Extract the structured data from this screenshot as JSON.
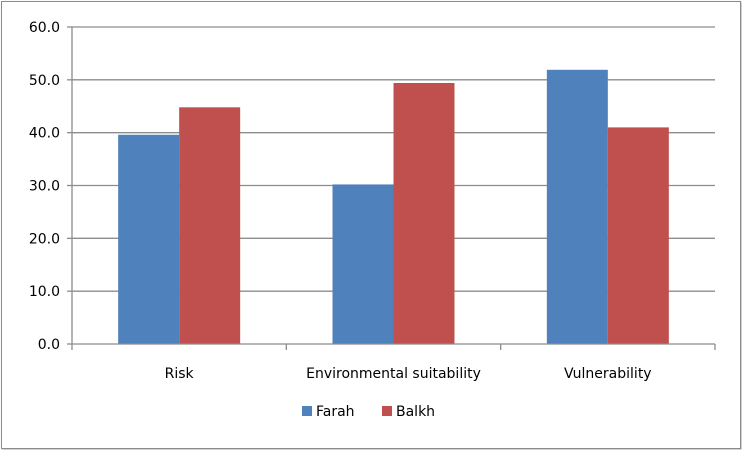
{
  "chart_data": {
    "type": "bar",
    "title": "",
    "xlabel": "",
    "ylabel": "",
    "categories": [
      "Risk",
      "Environmental suitability",
      "Vulnerability"
    ],
    "series": [
      {
        "name": "Farah",
        "color": "#4f81bd",
        "values": [
          39.6,
          30.2,
          51.9
        ]
      },
      {
        "name": "Balkh",
        "color": "#c0504d",
        "values": [
          44.8,
          49.4,
          41.0
        ]
      }
    ],
    "ylim": [
      0,
      60
    ],
    "yticks": [
      "0.0",
      "10.0",
      "20.0",
      "30.0",
      "40.0",
      "50.0",
      "60.0"
    ],
    "grid": true,
    "legend_position": "bottom"
  }
}
